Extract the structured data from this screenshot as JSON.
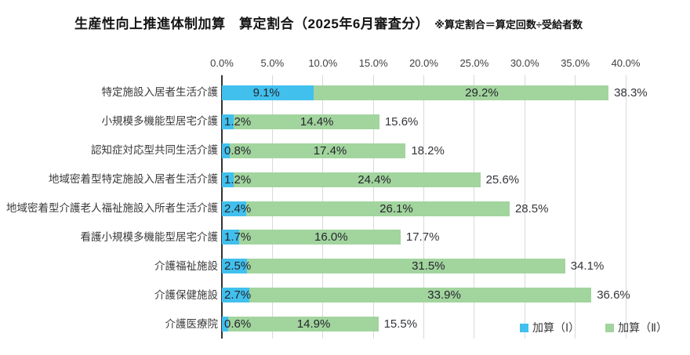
{
  "title": "生産性向上推進体制加算　算定割合（2025年6月審査分）",
  "title_note": "※算定割合＝算定回数÷受給者数",
  "colors": {
    "series1": "#41C0EE",
    "series2": "#A2D49E",
    "gridline": "#D9D9D9",
    "axis": "#333333"
  },
  "legend": [
    {
      "label": "加算（Ⅰ）",
      "color": "#41C0EE"
    },
    {
      "label": "加算（Ⅱ）",
      "color": "#A2D49E"
    }
  ],
  "chart_data": {
    "type": "bar",
    "orientation": "horizontal",
    "stacked": true,
    "title": "生産性向上推進体制加算　算定割合（2025年6月審査分）",
    "categories": [
      "特定施設入居者生活介護",
      "小規模多機能型居宅介護",
      "認知症対応型共同生活介護",
      "地域密着型特定施設入居者生活介護",
      "地域密着型介護老人福祉施設入所者生活介護",
      "看護小規模多機能型居宅介護",
      "介護福祉施設",
      "介護保健施設",
      "介護医療院"
    ],
    "series": [
      {
        "name": "加算（Ⅰ）",
        "color": "#41C0EE",
        "values": [
          9.1,
          1.2,
          0.8,
          1.2,
          2.4,
          1.7,
          2.5,
          2.7,
          0.6
        ]
      },
      {
        "name": "加算（Ⅱ）",
        "color": "#A2D49E",
        "values": [
          29.2,
          14.4,
          17.4,
          24.4,
          26.1,
          16.0,
          31.5,
          33.9,
          14.9
        ]
      }
    ],
    "totals": [
      38.3,
      15.6,
      18.2,
      25.6,
      28.5,
      17.7,
      34.1,
      36.6,
      15.5
    ],
    "x_ticks": [
      "0.0%",
      "5.0%",
      "10.0%",
      "15.0%",
      "20.0%",
      "25.0%",
      "30.0%",
      "35.0%",
      "40.0%"
    ],
    "xlim": [
      0,
      40
    ],
    "grid": true,
    "legend_position": "bottom-right",
    "value_suffix": "%"
  }
}
